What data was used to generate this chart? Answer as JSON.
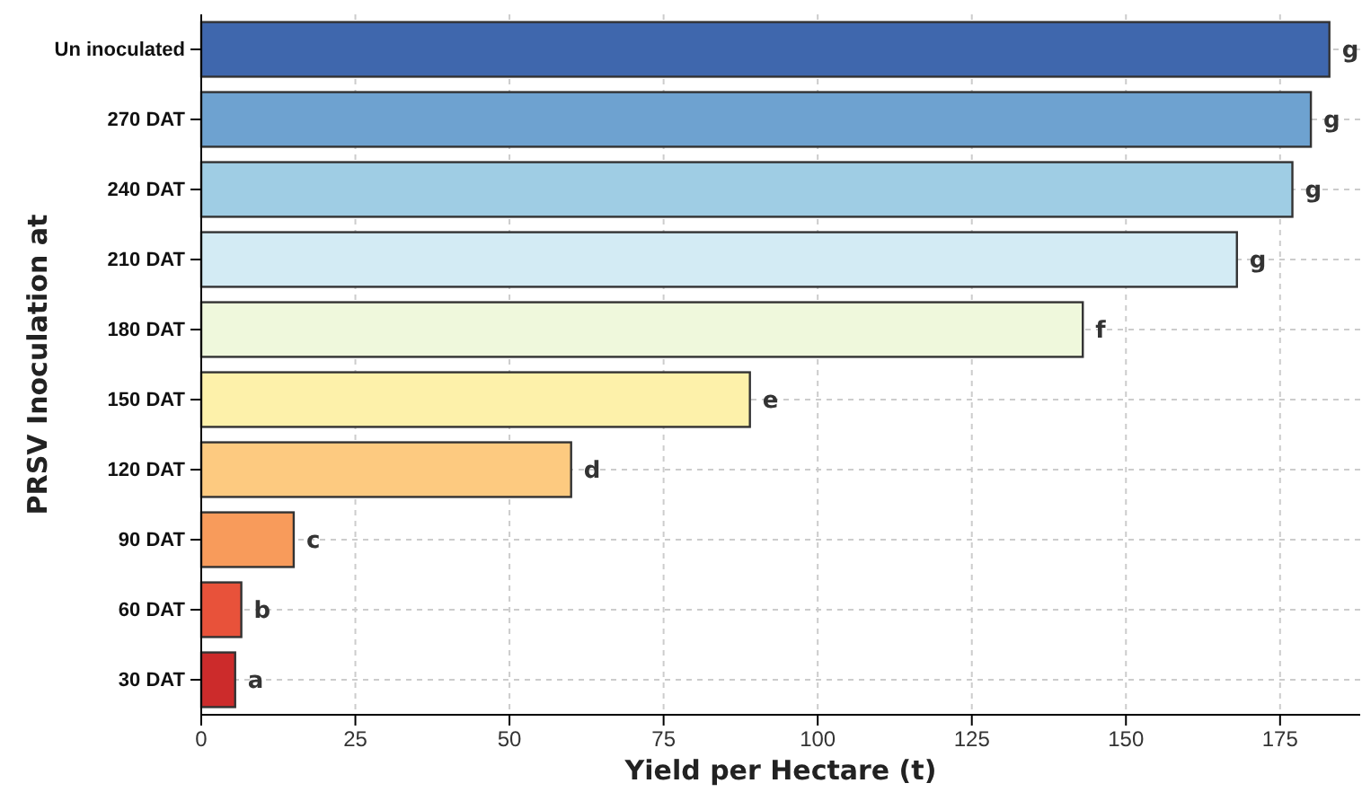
{
  "chart_data": {
    "type": "bar",
    "orientation": "horizontal",
    "xlabel": "Yield per Hectare (t)",
    "ylabel": "PRSV Inoculation at",
    "categories": [
      "Un inoculated",
      "270 DAT",
      "240 DAT",
      "210 DAT",
      "180 DAT",
      "150 DAT",
      "120 DAT",
      "90 DAT",
      "60 DAT",
      "30 DAT"
    ],
    "values": [
      183,
      180,
      177,
      168,
      143,
      89,
      60,
      15,
      6.5,
      5.5
    ],
    "colors": [
      "#3f67ad",
      "#6ea2d0",
      "#9fcde4",
      "#d3ebf4",
      "#eff8dc",
      "#fdf1aa",
      "#fdca80",
      "#f89b5b",
      "#e8523a",
      "#cc2b2b"
    ],
    "value_labels": [
      "g",
      "g",
      "g",
      "g",
      "f",
      "e",
      "d",
      "c",
      "b",
      "a"
    ],
    "xlim": [
      0,
      188
    ],
    "xticks": [
      0,
      25,
      50,
      75,
      100,
      125,
      150,
      175
    ],
    "grid": true
  }
}
